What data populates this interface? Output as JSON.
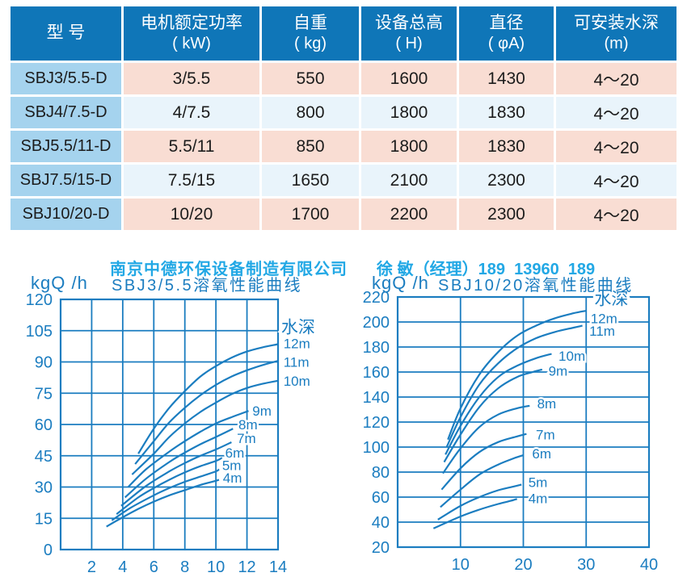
{
  "table": {
    "headers": [
      {
        "title": "型 号",
        "unit": ""
      },
      {
        "title": "电机额定功率",
        "unit": "( kW)"
      },
      {
        "title": "自重",
        "unit": "( kg)"
      },
      {
        "title": "设备总高",
        "unit": "( H)"
      },
      {
        "title": "直径",
        "unit": "( φA)"
      },
      {
        "title": "可安装水深",
        "unit": "(m)"
      }
    ],
    "rows": [
      [
        "SBJ3/5.5-D",
        "3/5.5",
        "550",
        "1600",
        "1430",
        "4～20"
      ],
      [
        "SBJ4/7.5-D",
        "4/7.5",
        "800",
        "1800",
        "1830",
        "4～20"
      ],
      [
        "SBJ5.5/11-D",
        "5.5/11",
        "850",
        "1800",
        "1830",
        "4～20"
      ],
      [
        "SBJ7.5/15-D",
        "7.5/15",
        "1650",
        "2100",
        "2300",
        "4～20"
      ],
      [
        "SBJ10/20-D",
        "10/20",
        "1700",
        "2200",
        "2300",
        "4～20"
      ]
    ]
  },
  "contact": {
    "company": "南京中德环保设备制造有限公司",
    "person": "徐 敏（经理）189  13960  189"
  },
  "colors": {
    "header_blue": "#0f76b8",
    "model_cell_blue": "#a5d3ee",
    "row_pink": "#f9ddd3",
    "row_pale_blue": "#e9f4fb",
    "chart_blue": "#1b7dc0",
    "contact_cyan": "#22a8e5"
  },
  "chart_data": [
    {
      "type": "line",
      "title": "SBJ3/5.5溶氧性能曲线",
      "unit_label": "kgQ /h",
      "legend_label": "水深",
      "legend_xy": [
        14.2,
        107
      ],
      "xlim": [
        0,
        14
      ],
      "ylim": [
        0,
        120
      ],
      "xticks": [
        2,
        4,
        6,
        8,
        10,
        12,
        14
      ],
      "yticks": [
        0,
        15,
        30,
        45,
        60,
        75,
        90,
        105,
        120
      ],
      "grid": true,
      "series": [
        {
          "name": "12m",
          "label_xy": [
            14.35,
            99
          ],
          "points": [
            [
              5.0,
              46
            ],
            [
              6,
              58
            ],
            [
              7,
              68
            ],
            [
              8,
              76
            ],
            [
              9,
              83
            ],
            [
              10,
              88
            ],
            [
              11,
              92
            ],
            [
              12,
              95
            ],
            [
              13,
              97
            ],
            [
              14,
              98.5
            ]
          ]
        },
        {
          "name": "11m",
          "label_xy": [
            14.35,
            90
          ],
          "points": [
            [
              4.8,
              41
            ],
            [
              6,
              52
            ],
            [
              7,
              61
            ],
            [
              8,
              68
            ],
            [
              9,
              74
            ],
            [
              10,
              79
            ],
            [
              11,
              83
            ],
            [
              12,
              86
            ],
            [
              13,
              88.5
            ],
            [
              14,
              90.5
            ]
          ]
        },
        {
          "name": "10m",
          "label_xy": [
            14.35,
            81
          ],
          "points": [
            [
              4.6,
              36
            ],
            [
              6,
              46
            ],
            [
              7,
              54
            ],
            [
              8,
              60.5
            ],
            [
              9,
              66
            ],
            [
              10,
              70.5
            ],
            [
              11,
              74.5
            ],
            [
              12,
              77.5
            ],
            [
              13,
              79.5
            ],
            [
              14,
              81
            ]
          ]
        },
        {
          "name": "9m",
          "label_xy": [
            12.35,
            66.5
          ],
          "points": [
            [
              4.35,
              30
            ],
            [
              5.5,
              38.5
            ],
            [
              7,
              47
            ],
            [
              8,
              52
            ],
            [
              9,
              56.5
            ],
            [
              10,
              60.5
            ],
            [
              11,
              63.5
            ],
            [
              12.1,
              66.5
            ]
          ]
        },
        {
          "name": "8m",
          "label_xy": [
            11.45,
            60
          ],
          "points": [
            [
              4.15,
              25
            ],
            [
              5.5,
              34
            ],
            [
              7,
              42
            ],
            [
              8,
              46.5
            ],
            [
              9,
              50.5
            ],
            [
              10,
              54
            ],
            [
              11.1,
              58
            ]
          ]
        },
        {
          "name": "7m",
          "label_xy": [
            11.35,
            53.5
          ],
          "points": [
            [
              3.9,
              21
            ],
            [
              5.5,
              30.5
            ],
            [
              7,
              37.5
            ],
            [
              8,
              41.5
            ],
            [
              9,
              45
            ],
            [
              10,
              48
            ],
            [
              11,
              51.5
            ]
          ]
        },
        {
          "name": "6m",
          "label_xy": [
            10.6,
            46.5
          ],
          "points": [
            [
              3.6,
              17
            ],
            [
              5,
              25
            ],
            [
              6,
              29.5
            ],
            [
              7,
              33.5
            ],
            [
              8,
              37
            ],
            [
              9,
              40
            ],
            [
              10,
              42.5
            ],
            [
              10.4,
              44
            ]
          ]
        },
        {
          "name": "5m",
          "label_xy": [
            10.4,
            40.5
          ],
          "points": [
            [
              3.3,
              14
            ],
            [
              4.5,
              20
            ],
            [
              6,
              26
            ],
            [
              7,
              29.5
            ],
            [
              8,
              32.5
            ],
            [
              9,
              35
            ],
            [
              10,
              37.5
            ],
            [
              10.2,
              38.5
            ]
          ]
        },
        {
          "name": "4m",
          "label_xy": [
            10.45,
            34.5
          ],
          "points": [
            [
              2.95,
              11
            ],
            [
              4,
              15.5
            ],
            [
              5,
              19.5
            ],
            [
              6,
              23
            ],
            [
              7,
              26
            ],
            [
              8,
              28.5
            ],
            [
              9,
              31
            ],
            [
              10,
              33
            ],
            [
              10.2,
              33.5
            ]
          ]
        }
      ]
    },
    {
      "type": "line",
      "title": "SBJ10/20溶氧性能曲线",
      "unit_label": "kgQ /h",
      "legend_label": "水深",
      "legend_xy": [
        31.3,
        219
      ],
      "xlim": [
        0,
        40
      ],
      "ylim": [
        20,
        220
      ],
      "xticks": [
        10,
        20,
        30,
        40
      ],
      "yticks": [
        20,
        40,
        60,
        80,
        100,
        120,
        140,
        160,
        180,
        200,
        220
      ],
      "grid": true,
      "series": [
        {
          "name": "12m",
          "label_xy": [
            30.7,
            203
          ],
          "points": [
            [
              8.0,
              106
            ],
            [
              10,
              131
            ],
            [
              13,
              158
            ],
            [
              16,
              176
            ],
            [
              19,
              189
            ],
            [
              22,
              197
            ],
            [
              25,
              203
            ],
            [
              28,
              207
            ],
            [
              30,
              209
            ]
          ]
        },
        {
          "name": "11m",
          "label_xy": [
            30.5,
            193
          ],
          "points": [
            [
              7.8,
              100
            ],
            [
              10,
              124
            ],
            [
              13,
              150
            ],
            [
              16,
              167
            ],
            [
              19,
              179
            ],
            [
              22,
              187
            ],
            [
              25,
              192
            ],
            [
              28,
              195.5
            ],
            [
              29.4,
              197
            ]
          ]
        },
        {
          "name": "10m",
          "label_xy": [
            25.6,
            173
          ],
          "points": [
            [
              7.6,
              94
            ],
            [
              10,
              117
            ],
            [
              13,
              140
            ],
            [
              16,
              156
            ],
            [
              19,
              165
            ],
            [
              22,
              171
            ],
            [
              24.5,
              174.5
            ]
          ]
        },
        {
          "name": "9m",
          "label_xy": [
            24.0,
            161
          ],
          "points": [
            [
              7.4,
              88
            ],
            [
              10,
              110
            ],
            [
              13,
              132
            ],
            [
              16,
              147
            ],
            [
              19,
              156
            ],
            [
              21.5,
              160
            ],
            [
              23,
              162
            ]
          ]
        },
        {
          "name": "8m",
          "label_xy": [
            22.2,
            135
          ],
          "points": [
            [
              7.2,
              79
            ],
            [
              10,
              99
            ],
            [
              13,
              116
            ],
            [
              16,
              126
            ],
            [
              19,
              131
            ],
            [
              21,
              133
            ]
          ]
        },
        {
          "name": "7m",
          "label_xy": [
            22.0,
            110
          ],
          "points": [
            [
              7.0,
              66
            ],
            [
              10,
              83
            ],
            [
              13,
              96
            ],
            [
              16,
              104
            ],
            [
              19,
              108.5
            ],
            [
              20.5,
              110.5
            ]
          ]
        },
        {
          "name": "6m",
          "label_xy": [
            21.4,
            95
          ],
          "points": [
            [
              6.8,
              52
            ],
            [
              10,
              66
            ],
            [
              13,
              78
            ],
            [
              16,
              86
            ],
            [
              18.5,
              91
            ],
            [
              20,
              93.5
            ]
          ]
        },
        {
          "name": "5m",
          "label_xy": [
            20.8,
            72
          ],
          "points": [
            [
              6.4,
              42
            ],
            [
              10,
              53
            ],
            [
              13,
              60
            ],
            [
              16,
              65.5
            ],
            [
              18.5,
              68.5
            ],
            [
              19.7,
              70
            ]
          ]
        },
        {
          "name": "4m",
          "label_xy": [
            20.8,
            59
          ],
          "points": [
            [
              5.7,
              35
            ],
            [
              10,
              44.5
            ],
            [
              13,
              50
            ],
            [
              16,
              54.5
            ],
            [
              18,
              57
            ],
            [
              19,
              58.5
            ]
          ]
        }
      ]
    }
  ]
}
